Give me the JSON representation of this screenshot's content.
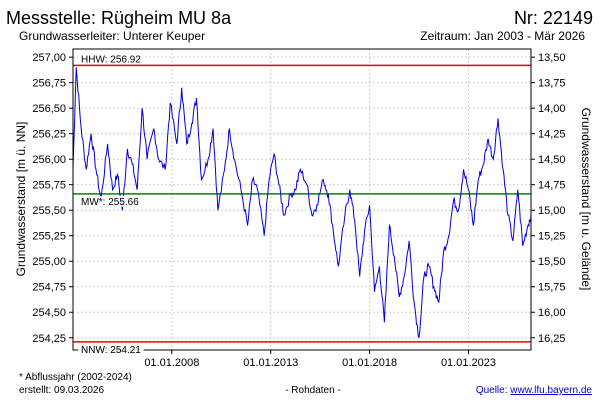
{
  "header": {
    "title": "Messstelle: Rügheim MU 8a",
    "number": "Nr: 22149",
    "aquifer": "Grundwasserleiter:   Unterer Keuper",
    "period": "Zeitraum: Jan 2003 - Mär 2026"
  },
  "footer": {
    "note": "* Abflussjahr (2002-2024)",
    "created": "erstellt:  09.03.2026",
    "raw": "- Rohdaten -",
    "source_label": "Quelle: ",
    "source_link": "www.lfu.bayern.de"
  },
  "chart_data": {
    "type": "line",
    "title": "",
    "ylabel": "Grundwasserstand [m ü. NN]",
    "y2label": "Grundwasserstand [m u. Gelände]",
    "x_range": [
      "2003-01-01",
      "2026-03-01"
    ],
    "ylim": [
      254.13,
      257.08
    ],
    "y_ticks": [
      "257,00",
      "256,75",
      "256,50",
      "256,25",
      "256,00",
      "255,75",
      "255,50",
      "255,25",
      "255,00",
      "254,75",
      "254,50",
      "254,25"
    ],
    "y2_ticks": [
      "13,50",
      "13,75",
      "14,00",
      "14,25",
      "14,50",
      "14,75",
      "15,00",
      "15,25",
      "15,50",
      "15,75",
      "16,00",
      "16,25"
    ],
    "x_ticks": [
      "01.01.2008",
      "01.01.2013",
      "01.01.2018",
      "01.01.2023"
    ],
    "grid": true,
    "color": "#0000dd",
    "reference_lines": [
      {
        "label": "HHW: 256.92",
        "value": 256.92,
        "color": "#ee0000"
      },
      {
        "label": "MW*: 255.66",
        "value": 255.66,
        "color": "#008800"
      },
      {
        "label": "NNW: 254.21",
        "value": 254.21,
        "color": "#ee0000"
      }
    ],
    "series": [
      {
        "x": [
          "2003-01",
          "2003-03",
          "2003-06",
          "2003-09",
          "2003-12",
          "2004-03",
          "2004-06",
          "2004-10",
          "2005-01",
          "2005-04",
          "2005-07",
          "2005-10",
          "2006-01",
          "2006-04",
          "2006-07",
          "2006-10",
          "2007-02",
          "2007-05",
          "2007-09",
          "2007-12",
          "2008-04",
          "2008-07",
          "2008-10",
          "2009-01",
          "2009-04",
          "2009-07",
          "2009-11",
          "2010-02",
          "2010-05",
          "2010-09",
          "2010-12",
          "2011-03",
          "2011-07",
          "2011-11",
          "2012-02",
          "2012-05",
          "2012-09",
          "2012-12",
          "2013-03",
          "2013-06",
          "2013-09",
          "2014-01",
          "2014-04",
          "2014-07",
          "2014-11",
          "2015-02",
          "2015-05",
          "2015-09",
          "2015-12",
          "2016-03",
          "2016-06",
          "2016-10",
          "2017-01",
          "2017-04",
          "2017-07",
          "2017-10",
          "2018-01",
          "2018-04",
          "2018-07",
          "2018-10",
          "2019-01",
          "2019-04",
          "2019-07",
          "2019-10",
          "2020-01",
          "2020-04",
          "2020-07",
          "2020-10",
          "2021-01",
          "2021-04",
          "2021-07",
          "2021-10",
          "2022-01",
          "2022-04",
          "2022-07",
          "2022-10",
          "2023-01",
          "2023-04",
          "2023-07",
          "2023-10",
          "2024-01",
          "2024-04",
          "2024-07",
          "2024-10",
          "2025-01",
          "2025-04",
          "2025-07",
          "2025-10",
          "2026-01",
          "2026-03"
        ],
        "y": [
          255.9,
          256.9,
          256.3,
          255.9,
          256.25,
          255.9,
          255.6,
          256.15,
          255.7,
          255.85,
          255.5,
          256.1,
          255.95,
          255.7,
          256.5,
          256.0,
          256.3,
          256.0,
          255.9,
          256.55,
          256.15,
          256.7,
          256.15,
          256.35,
          256.6,
          255.8,
          256.0,
          256.3,
          255.5,
          255.9,
          256.3,
          256.0,
          255.7,
          255.35,
          255.8,
          255.7,
          255.25,
          255.8,
          256.05,
          255.75,
          255.45,
          255.65,
          255.7,
          255.9,
          255.75,
          255.45,
          255.55,
          255.8,
          255.65,
          255.3,
          254.95,
          255.45,
          255.7,
          255.4,
          254.85,
          255.3,
          255.55,
          254.7,
          254.95,
          254.4,
          255.35,
          255.05,
          254.65,
          254.85,
          255.2,
          254.6,
          254.25,
          254.85,
          254.95,
          254.75,
          254.6,
          255.1,
          255.25,
          255.6,
          255.5,
          255.9,
          255.7,
          255.35,
          255.8,
          255.95,
          256.2,
          256.0,
          256.4,
          255.9,
          255.45,
          255.2,
          255.7,
          255.15,
          255.35,
          255.45
        ]
      }
    ]
  }
}
